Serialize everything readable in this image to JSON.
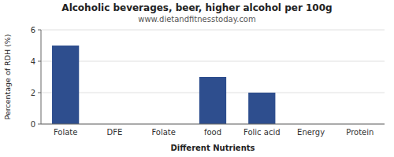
{
  "chart_data": {
    "type": "bar",
    "title": "Alcoholic beverages, beer, higher alcohol per 100g",
    "subtitle": "www.dietandfitnesstoday.com",
    "xlabel": "Different Nutrients",
    "ylabel": "Percentage of RDH (%)",
    "categories": [
      "Folate",
      "DFE",
      "Folate",
      "food",
      "Folic acid",
      "Energy",
      "Protein"
    ],
    "values": [
      5.0,
      0.0,
      0.0,
      3.0,
      2.0,
      0.0,
      0.0
    ],
    "color": "#2e4e8e",
    "ylim": [
      0,
      6
    ],
    "yticks": [
      0,
      2,
      4,
      6
    ],
    "grid": true
  }
}
